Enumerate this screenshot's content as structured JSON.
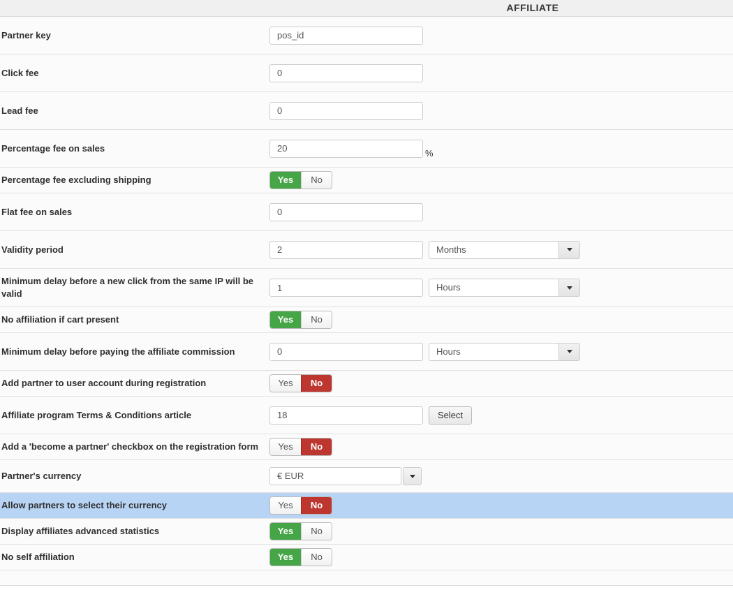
{
  "header": {
    "title": "AFFILIATE"
  },
  "toggle_labels": {
    "yes": "Yes",
    "no": "No"
  },
  "colors": {
    "toggle_yes_active": "#46a546",
    "toggle_no_active": "#bd362f",
    "row_highlight": "#b8d4f5",
    "header_bg": "#f0f0f0"
  },
  "rows": [
    {
      "label": "Partner key",
      "type": "text",
      "value": "pos_id"
    },
    {
      "label": "Click fee",
      "type": "text",
      "value": "0"
    },
    {
      "label": "Lead fee",
      "type": "text",
      "value": "0"
    },
    {
      "label": "Percentage fee on sales",
      "type": "text",
      "value": "20",
      "suffix": "%"
    },
    {
      "label": "Percentage fee excluding shipping",
      "type": "toggle",
      "value": "Yes"
    },
    {
      "label": "Flat fee on sales",
      "type": "text",
      "value": "0"
    },
    {
      "label": "Validity period",
      "type": "text+select",
      "value": "2",
      "select": "Months"
    },
    {
      "label": "Minimum delay before a new click from the same IP will be valid",
      "type": "text+select",
      "value": "1",
      "select": "Hours"
    },
    {
      "label": "No affiliation if cart present",
      "type": "toggle",
      "value": "Yes"
    },
    {
      "label": "Minimum delay before paying the affiliate commission",
      "type": "text+select",
      "value": "0",
      "select": "Hours"
    },
    {
      "label": "Add partner to user account during registration",
      "type": "toggle",
      "value": "No"
    },
    {
      "label": "Affiliate program Terms & Conditions article",
      "type": "text+button",
      "value": "18",
      "button": "Select"
    },
    {
      "label": "Add a 'become a partner' checkbox on the registration form",
      "type": "toggle",
      "value": "No"
    },
    {
      "label": "Partner's currency",
      "type": "select",
      "value": "€ EUR"
    },
    {
      "label": "Allow partners to select their currency",
      "type": "toggle",
      "value": "No",
      "highlighted": true
    },
    {
      "label": "Display affiliates advanced statistics",
      "type": "toggle",
      "value": "Yes"
    },
    {
      "label": "No self affiliation",
      "type": "toggle",
      "value": "Yes"
    }
  ]
}
